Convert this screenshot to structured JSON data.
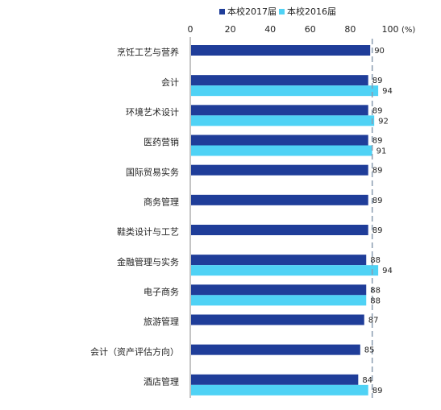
{
  "chart_data": {
    "type": "bar",
    "orientation": "horizontal",
    "unit_label": "(%)",
    "xlim": [
      0,
      100
    ],
    "x_ticks": [
      0,
      20,
      40,
      60,
      80,
      100
    ],
    "legend_position": "top",
    "categories": [
      "烹饪工艺与营养",
      "会计",
      "环境艺术设计",
      "医药营销",
      "国际贸易实务",
      "商务管理",
      "鞋类设计与工艺",
      "金融管理与实务",
      "电子商务",
      "旅游管理",
      "会计（资产评估方向）",
      "酒店管理"
    ],
    "series": [
      {
        "name": "本校2017届",
        "color": "#1f3d99",
        "values": [
          90,
          89,
          89,
          89,
          89,
          89,
          89,
          88,
          88,
          87,
          85,
          84
        ]
      },
      {
        "name": "本校2016届",
        "color": "#4fd2f5",
        "values": [
          null,
          94,
          92,
          91,
          null,
          null,
          null,
          94,
          88,
          null,
          null,
          89
        ]
      }
    ],
    "reference_line": {
      "value": 91,
      "style": "dashed",
      "color": "#8a9bb0"
    }
  }
}
